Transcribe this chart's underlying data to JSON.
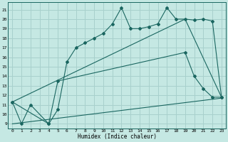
{
  "xlabel": "Humidex (Indice chaleur)",
  "background_color": "#c5e8e3",
  "grid_color": "#a8d0cc",
  "line_color": "#1a6660",
  "xlim": [
    -0.5,
    23.5
  ],
  "ylim": [
    8.5,
    21.8
  ],
  "xticks": [
    0,
    1,
    2,
    3,
    4,
    5,
    6,
    7,
    8,
    9,
    10,
    11,
    12,
    13,
    14,
    15,
    16,
    17,
    18,
    19,
    20,
    21,
    22,
    23
  ],
  "yticks": [
    9,
    10,
    11,
    12,
    13,
    14,
    15,
    16,
    17,
    18,
    19,
    20,
    21
  ],
  "line1_x": [
    0,
    1,
    2,
    4,
    5,
    6,
    7,
    8,
    9,
    10,
    11,
    12,
    13,
    14,
    15,
    16,
    17,
    18,
    19,
    20,
    21,
    22,
    23
  ],
  "line1_y": [
    11.3,
    9.0,
    11.0,
    9.0,
    10.5,
    15.5,
    17.0,
    17.5,
    18.0,
    18.5,
    19.5,
    21.2,
    19.0,
    19.0,
    19.2,
    19.5,
    21.2,
    20.0,
    20.0,
    19.9,
    20.0,
    19.8,
    11.8
  ],
  "line2_x": [
    0,
    4,
    5,
    19,
    20,
    21,
    22,
    23
  ],
  "line2_y": [
    11.3,
    9.0,
    13.5,
    16.5,
    14.0,
    12.7,
    11.8,
    11.8
  ],
  "line3_x": [
    0,
    23
  ],
  "line3_y": [
    9.0,
    11.7
  ],
  "line4_x": [
    0,
    19,
    23
  ],
  "line4_y": [
    11.3,
    20.0,
    11.8
  ]
}
